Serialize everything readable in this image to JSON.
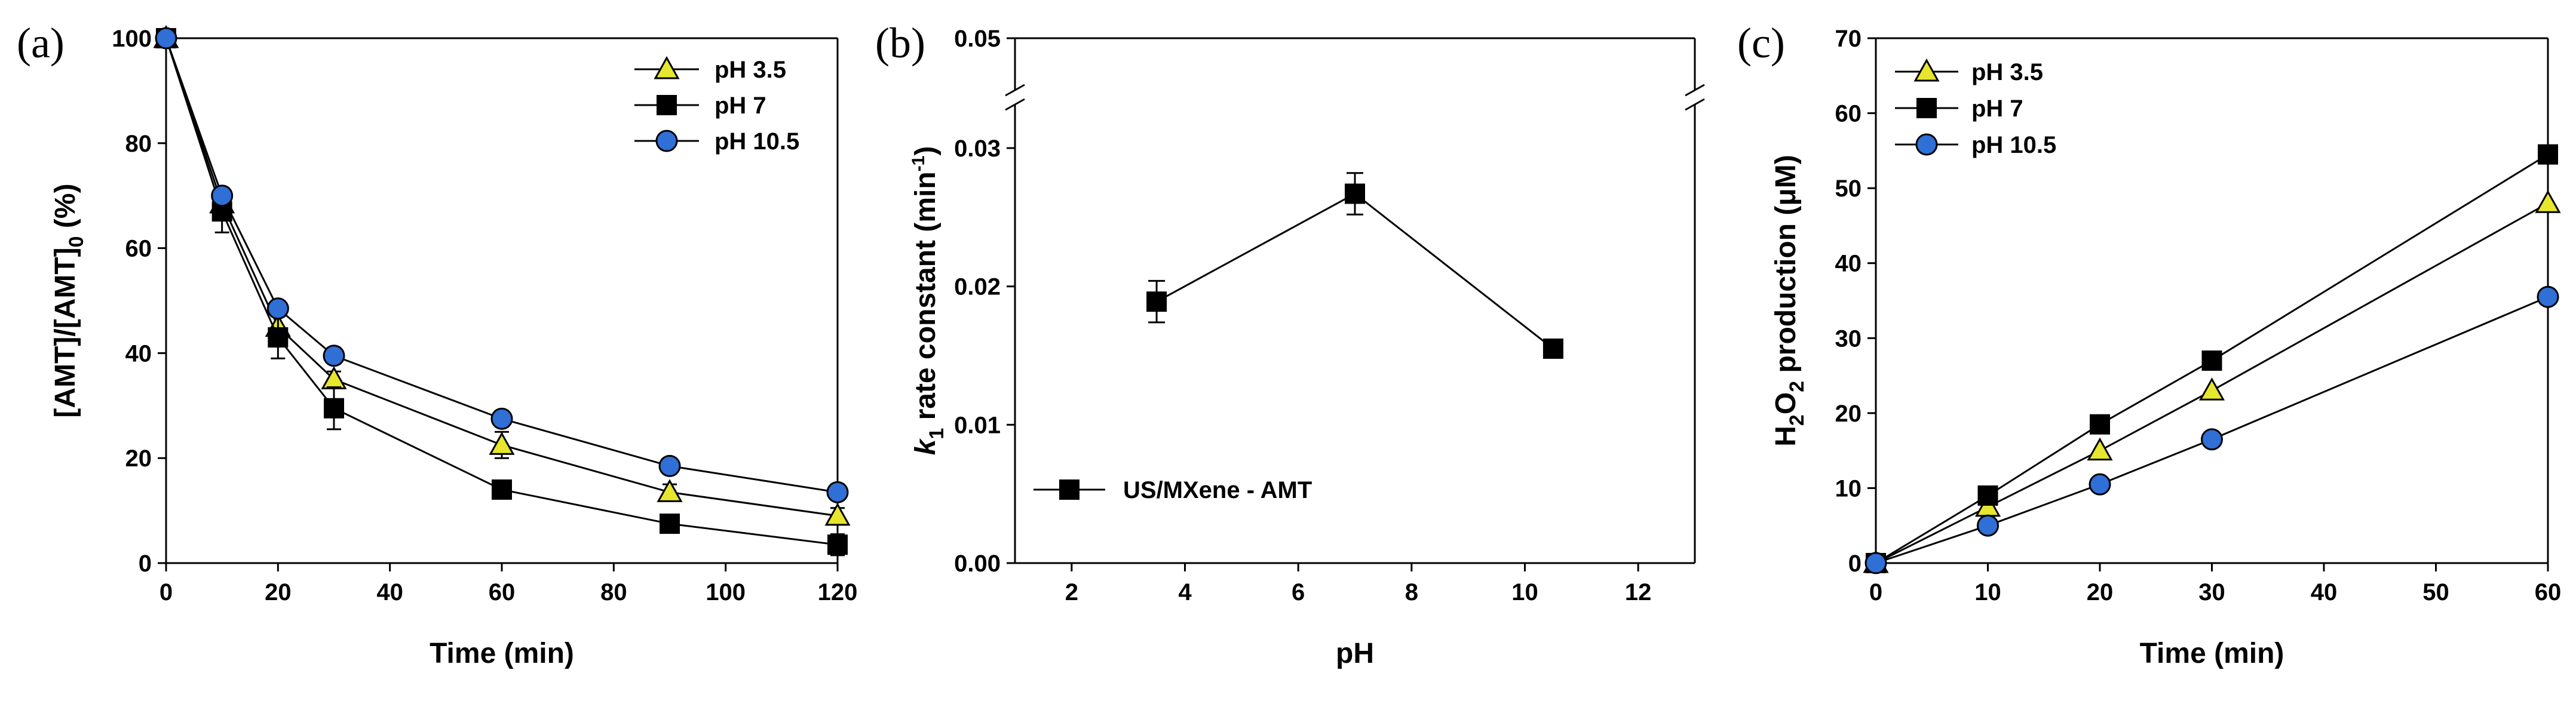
{
  "colors": {
    "triangle": "#e6e62e",
    "square": "#000000",
    "circle": "#2f6fd6",
    "edge": "#000000"
  },
  "chart_data": [
    {
      "type": "line",
      "panel_label": "(a)",
      "xlabel": "Time (min)",
      "ylabel": {
        "main": "[AMT]/[AMT]",
        "sub": "0",
        "tail": " (%)"
      },
      "xlim": [
        0,
        120
      ],
      "ylim": [
        0,
        100
      ],
      "xticks": [
        0,
        20,
        40,
        60,
        80,
        100,
        120
      ],
      "yticks": [
        0,
        20,
        40,
        60,
        80,
        100
      ],
      "legend_position": "top-right",
      "series": [
        {
          "name": "pH 3.5",
          "marker": "triangle",
          "x": [
            0,
            10,
            20,
            30,
            60,
            90,
            120
          ],
          "y": [
            100,
            68.5,
            45,
            35,
            22.5,
            13.5,
            9
          ],
          "err": [
            0,
            2,
            2,
            1.5,
            2.5,
            1.5,
            1.5
          ]
        },
        {
          "name": "pH 7",
          "marker": "square",
          "x": [
            0,
            10,
            20,
            30,
            60,
            90,
            120
          ],
          "y": [
            100,
            67,
            43,
            29.5,
            14,
            7.5,
            3.5
          ],
          "err": [
            0,
            4,
            4,
            4,
            1.5,
            1.5,
            2
          ]
        },
        {
          "name": "pH 10.5",
          "marker": "circle",
          "x": [
            0,
            10,
            20,
            30,
            60,
            90,
            120
          ],
          "y": [
            100,
            70,
            48.5,
            39.5,
            27.5,
            18.5,
            13.5
          ],
          "err": [
            0,
            1.5,
            1.5,
            1.5,
            1.5,
            1.5,
            1.5
          ]
        }
      ]
    },
    {
      "type": "line",
      "panel_label": "(b)",
      "xlabel": "pH",
      "ylabel": {
        "main": "k",
        "sub": "1",
        "tail": " rate constant (min",
        "sup": "-1",
        "end": ")"
      },
      "xlim": [
        1,
        13
      ],
      "ylim": [
        0,
        0.05
      ],
      "axis_break": [
        0.03,
        0.05
      ],
      "xticks": [
        2,
        4,
        6,
        8,
        10,
        12
      ],
      "yticks": [
        "0.00",
        "0.01",
        "0.02",
        "0.03",
        "0.05"
      ],
      "legend_position": "lower-left",
      "series": [
        {
          "name": "US/MXene - AMT",
          "marker": "square",
          "x": [
            3.5,
            7,
            10.5
          ],
          "y": [
            0.0189,
            0.0267,
            0.0155
          ],
          "err": [
            0.0015,
            0.0015,
            0.0004
          ]
        }
      ]
    },
    {
      "type": "line",
      "panel_label": "(c)",
      "xlabel": "Time (min)",
      "ylabel": {
        "main": "H",
        "sub": "2",
        "mid": "O",
        "sub2": "2",
        "tail": " production (μM)"
      },
      "xlim": [
        0,
        60
      ],
      "ylim": [
        0,
        70
      ],
      "xticks": [
        0,
        10,
        20,
        30,
        40,
        50,
        60
      ],
      "yticks": [
        0,
        10,
        20,
        30,
        40,
        50,
        60,
        70
      ],
      "legend_position": "top-left",
      "series": [
        {
          "name": "pH 3.5",
          "marker": "triangle",
          "x": [
            0,
            10,
            20,
            30,
            60
          ],
          "y": [
            0,
            7.5,
            15,
            23,
            48
          ]
        },
        {
          "name": "pH 7",
          "marker": "square",
          "x": [
            0,
            10,
            20,
            30,
            60
          ],
          "y": [
            0,
            9,
            18.5,
            27,
            54.5
          ]
        },
        {
          "name": "pH 10.5",
          "marker": "circle",
          "x": [
            0,
            10,
            20,
            30,
            60
          ],
          "y": [
            0,
            5,
            10.5,
            16.5,
            35.5
          ]
        }
      ]
    }
  ]
}
